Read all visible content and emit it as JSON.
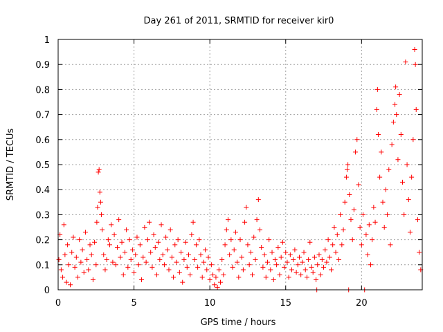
{
  "chart_data": {
    "type": "scatter",
    "title": "Day 261 of 2011, SRMTID for receiver kir0",
    "xlabel": "GPS time / hours",
    "ylabel": "SRMTID / TECUs",
    "xlim": [
      0,
      24
    ],
    "ylim": [
      0,
      1
    ],
    "xticks": [
      0,
      5,
      10,
      15,
      20
    ],
    "yticks": [
      0,
      0.1,
      0.2,
      0.3,
      0.4,
      0.5,
      0.6,
      0.7,
      0.8,
      0.9,
      1
    ],
    "ytick_labels": [
      "0",
      "0.1",
      "0.2",
      "0.3",
      "0.4",
      "0.5",
      "0.6",
      "0.7",
      "0.8",
      "0.9",
      "1"
    ],
    "grid": true,
    "marker": "+",
    "series": [
      {
        "name": "SRMTID",
        "color": "#ff0000",
        "points": [
          [
            0.05,
            0.12
          ],
          [
            0.12,
            0.22
          ],
          [
            0.2,
            0.08
          ],
          [
            0.3,
            0.05
          ],
          [
            0.38,
            0.26
          ],
          [
            0.45,
            0.14
          ],
          [
            0.55,
            0.03
          ],
          [
            0.62,
            0.18
          ],
          [
            0.7,
            0.1
          ],
          [
            0.8,
            0.02
          ],
          [
            0.9,
            0.15
          ],
          [
            1.0,
            0.21
          ],
          [
            1.1,
            0.09
          ],
          [
            1.2,
            0.13
          ],
          [
            1.3,
            0.05
          ],
          [
            1.4,
            0.2
          ],
          [
            1.5,
            0.11
          ],
          [
            1.6,
            0.16
          ],
          [
            1.7,
            0.07
          ],
          [
            1.8,
            0.23
          ],
          [
            1.9,
            0.12
          ],
          [
            2.0,
            0.08
          ],
          [
            2.1,
            0.18
          ],
          [
            2.2,
            0.14
          ],
          [
            2.3,
            0.04
          ],
          [
            2.4,
            0.19
          ],
          [
            2.5,
            0.1
          ],
          [
            2.55,
            0.27
          ],
          [
            2.6,
            0.33
          ],
          [
            2.65,
            0.47
          ],
          [
            2.7,
            0.48
          ],
          [
            2.75,
            0.39
          ],
          [
            2.8,
            0.35
          ],
          [
            2.85,
            0.3
          ],
          [
            2.9,
            0.24
          ],
          [
            3.0,
            0.14
          ],
          [
            3.1,
            0.08
          ],
          [
            3.2,
            0.12
          ],
          [
            3.3,
            0.2
          ],
          [
            3.4,
            0.18
          ],
          [
            3.5,
            0.26
          ],
          [
            3.6,
            0.11
          ],
          [
            3.7,
            0.22
          ],
          [
            3.8,
            0.1
          ],
          [
            3.9,
            0.17
          ],
          [
            4.0,
            0.28
          ],
          [
            4.1,
            0.13
          ],
          [
            4.2,
            0.19
          ],
          [
            4.3,
            0.06
          ],
          [
            4.4,
            0.15
          ],
          [
            4.5,
            0.24
          ],
          [
            4.6,
            0.09
          ],
          [
            4.7,
            0.2
          ],
          [
            4.8,
            0.12
          ],
          [
            4.9,
            0.16
          ],
          [
            5.0,
            0.07
          ],
          [
            5.1,
            0.14
          ],
          [
            5.2,
            0.21
          ],
          [
            5.3,
            0.1
          ],
          [
            5.4,
            0.18
          ],
          [
            5.5,
            0.04
          ],
          [
            5.6,
            0.13
          ],
          [
            5.7,
            0.25
          ],
          [
            5.8,
            0.11
          ],
          [
            5.9,
            0.2
          ],
          [
            6.0,
            0.27
          ],
          [
            6.1,
            0.15
          ],
          [
            6.2,
            0.09
          ],
          [
            6.3,
            0.22
          ],
          [
            6.4,
            0.17
          ],
          [
            6.5,
            0.06
          ],
          [
            6.6,
            0.19
          ],
          [
            6.7,
            0.12
          ],
          [
            6.8,
            0.26
          ],
          [
            6.9,
            0.14
          ],
          [
            7.0,
            0.1
          ],
          [
            7.1,
            0.21
          ],
          [
            7.2,
            0.16
          ],
          [
            7.3,
            0.08
          ],
          [
            7.4,
            0.24
          ],
          [
            7.5,
            0.13
          ],
          [
            7.6,
            0.05
          ],
          [
            7.7,
            0.18
          ],
          [
            7.8,
            0.11
          ],
          [
            7.9,
            0.2
          ],
          [
            8.0,
            0.07
          ],
          [
            8.1,
            0.15
          ],
          [
            8.2,
            0.03
          ],
          [
            8.3,
            0.12
          ],
          [
            8.4,
            0.19
          ],
          [
            8.5,
            0.09
          ],
          [
            8.6,
            0.14
          ],
          [
            8.7,
            0.06
          ],
          [
            8.8,
            0.22
          ],
          [
            8.9,
            0.27
          ],
          [
            9.0,
            0.12
          ],
          [
            9.1,
            0.18
          ],
          [
            9.2,
            0.09
          ],
          [
            9.3,
            0.2
          ],
          [
            9.4,
            0.14
          ],
          [
            9.5,
            0.05
          ],
          [
            9.6,
            0.11
          ],
          [
            9.7,
            0.16
          ],
          [
            9.8,
            0.08
          ],
          [
            9.9,
            0.13
          ],
          [
            10.0,
            0.04
          ],
          [
            10.1,
            0.1
          ],
          [
            10.2,
            0.06
          ],
          [
            10.3,
            0.02
          ],
          [
            10.4,
            0.05
          ],
          [
            10.5,
            0.01
          ],
          [
            10.6,
            0.08
          ],
          [
            10.7,
            0.03
          ],
          [
            10.8,
            0.12
          ],
          [
            10.9,
            0.06
          ],
          [
            11.0,
            0.18
          ],
          [
            11.1,
            0.24
          ],
          [
            11.2,
            0.28
          ],
          [
            11.3,
            0.14
          ],
          [
            11.4,
            0.2
          ],
          [
            11.5,
            0.09
          ],
          [
            11.6,
            0.16
          ],
          [
            11.7,
            0.23
          ],
          [
            11.8,
            0.11
          ],
          [
            11.9,
            0.05
          ],
          [
            12.0,
            0.2
          ],
          [
            12.1,
            0.13
          ],
          [
            12.2,
            0.08
          ],
          [
            12.3,
            0.27
          ],
          [
            12.4,
            0.33
          ],
          [
            12.5,
            0.18
          ],
          [
            12.6,
            0.1
          ],
          [
            12.7,
            0.15
          ],
          [
            12.8,
            0.06
          ],
          [
            12.9,
            0.21
          ],
          [
            13.0,
            0.12
          ],
          [
            13.1,
            0.28
          ],
          [
            13.2,
            0.36
          ],
          [
            13.3,
            0.24
          ],
          [
            13.4,
            0.17
          ],
          [
            13.5,
            0.09
          ],
          [
            13.6,
            0.14
          ],
          [
            13.7,
            0.05
          ],
          [
            13.8,
            0.11
          ],
          [
            13.9,
            0.2
          ],
          [
            14.0,
            0.08
          ],
          [
            14.1,
            0.15
          ],
          [
            14.2,
            0.04
          ],
          [
            14.3,
            0.12
          ],
          [
            14.4,
            0.1
          ],
          [
            14.5,
            0.17
          ],
          [
            14.6,
            0.06
          ],
          [
            14.7,
            0.13
          ],
          [
            14.8,
            0.19
          ],
          [
            14.9,
            0.09
          ],
          [
            15.0,
            0.15
          ],
          [
            15.1,
            0.11
          ],
          [
            15.2,
            0.05
          ],
          [
            15.3,
            0.14
          ],
          [
            15.4,
            0.08
          ],
          [
            15.5,
            0.12
          ],
          [
            15.6,
            0.16
          ],
          [
            15.7,
            0.07
          ],
          [
            15.8,
            0.1
          ],
          [
            15.9,
            0.13
          ],
          [
            16.0,
            0.06
          ],
          [
            16.1,
            0.11
          ],
          [
            16.2,
            0.15
          ],
          [
            16.3,
            0.08
          ],
          [
            16.4,
            0.05
          ],
          [
            16.5,
            0.12
          ],
          [
            16.6,
            0.19
          ],
          [
            16.7,
            0.09
          ],
          [
            16.8,
            0.07
          ],
          [
            16.9,
            0.13
          ],
          [
            17.0,
            0.04
          ],
          [
            17.05,
            0.0
          ],
          [
            17.1,
            0.1
          ],
          [
            17.2,
            0.14
          ],
          [
            17.3,
            0.06
          ],
          [
            17.4,
            0.12
          ],
          [
            17.5,
            0.09
          ],
          [
            17.6,
            0.16
          ],
          [
            17.7,
            0.11
          ],
          [
            17.8,
            0.2
          ],
          [
            17.9,
            0.13
          ],
          [
            18.0,
            0.08
          ],
          [
            18.1,
            0.18
          ],
          [
            18.2,
            0.25
          ],
          [
            18.3,
            0.15
          ],
          [
            18.4,
            0.22
          ],
          [
            18.5,
            0.12
          ],
          [
            18.6,
            0.3
          ],
          [
            18.7,
            0.18
          ],
          [
            18.8,
            0.24
          ],
          [
            18.9,
            0.35
          ],
          [
            19.0,
            0.45
          ],
          [
            19.05,
            0.48
          ],
          [
            19.1,
            0.5
          ],
          [
            19.15,
            0.0
          ],
          [
            19.2,
            0.38
          ],
          [
            19.3,
            0.28
          ],
          [
            19.4,
            0.2
          ],
          [
            19.5,
            0.32
          ],
          [
            19.6,
            0.55
          ],
          [
            19.7,
            0.6
          ],
          [
            19.8,
            0.42
          ],
          [
            19.9,
            0.25
          ],
          [
            20.0,
            0.18
          ],
          [
            20.1,
            0.3
          ],
          [
            20.2,
            0.0
          ],
          [
            20.3,
            0.22
          ],
          [
            20.4,
            0.14
          ],
          [
            20.5,
            0.26
          ],
          [
            20.6,
            0.1
          ],
          [
            20.7,
            0.2
          ],
          [
            20.8,
            0.33
          ],
          [
            20.9,
            0.27
          ],
          [
            21.0,
            0.72
          ],
          [
            21.05,
            0.8
          ],
          [
            21.1,
            0.62
          ],
          [
            21.2,
            0.45
          ],
          [
            21.3,
            0.55
          ],
          [
            21.4,
            0.35
          ],
          [
            21.5,
            0.25
          ],
          [
            21.6,
            0.4
          ],
          [
            21.7,
            0.3
          ],
          [
            21.8,
            0.48
          ],
          [
            21.9,
            0.18
          ],
          [
            22.0,
            0.58
          ],
          [
            22.1,
            0.67
          ],
          [
            22.2,
            0.74
          ],
          [
            22.25,
            0.81
          ],
          [
            22.3,
            0.7
          ],
          [
            22.4,
            0.52
          ],
          [
            22.5,
            0.78
          ],
          [
            22.6,
            0.62
          ],
          [
            22.7,
            0.43
          ],
          [
            22.8,
            0.3
          ],
          [
            22.9,
            0.91
          ],
          [
            23.0,
            0.5
          ],
          [
            23.1,
            0.36
          ],
          [
            23.2,
            0.23
          ],
          [
            23.3,
            0.45
          ],
          [
            23.4,
            0.6
          ],
          [
            23.5,
            0.96
          ],
          [
            23.55,
            0.9
          ],
          [
            23.6,
            0.72
          ],
          [
            23.7,
            0.28
          ],
          [
            23.8,
            0.15
          ],
          [
            23.9,
            0.08
          ]
        ]
      }
    ]
  }
}
